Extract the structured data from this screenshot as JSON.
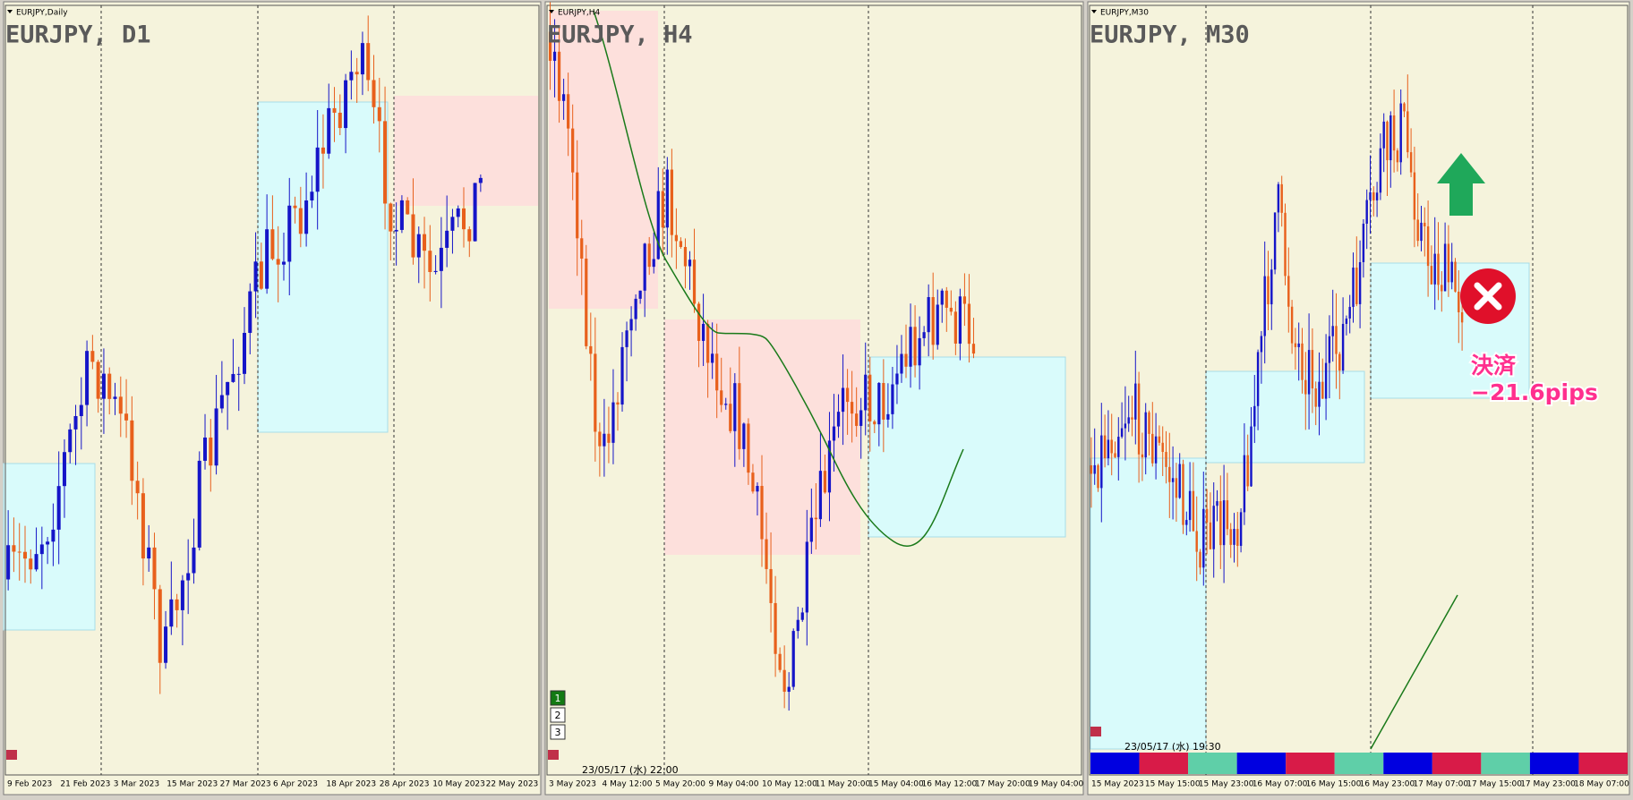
{
  "panels": [
    {
      "window_title": "EURJPY,Daily",
      "symbol_title": "EURJPY, D1",
      "time_labels": [
        "9 Feb 2023",
        "21 Feb 2023",
        "3 Mar 2023",
        "15 Mar 2023",
        "27 Mar 2023",
        "6 Apr 2023",
        "18 Apr 2023",
        "28 Apr 2023",
        "10 May 2023",
        "22 May 2023"
      ]
    },
    {
      "window_title": "EURJPY,H4",
      "symbol_title": "EURJPY, H4",
      "time_labels": [
        "3 May 2023",
        "4 May 12:00",
        "5 May 20:00",
        "9 May 04:00",
        "10 May 12:00",
        "11 May 20:00",
        "15 May 04:00",
        "16 May 12:00",
        "17 May 20:00",
        "19 May 04:00"
      ],
      "timestamp": "23/05/17 (水) 22:00",
      "buttons": [
        "1",
        "2",
        "3"
      ]
    },
    {
      "window_title": "EURJPY,M30",
      "symbol_title": "EURJPY, M30",
      "time_labels": [
        "15 May 2023",
        "15 May 15:00",
        "15 May 23:00",
        "16 May 07:00",
        "16 May 15:00",
        "16 May 23:00",
        "17 May 07:00",
        "17 May 15:00",
        "17 May 23:00",
        "18 May 07:00"
      ],
      "timestamp": "23/05/17 (水) 19:30"
    }
  ],
  "annotation": {
    "line1": "決済",
    "line2": "−21.6pips"
  }
}
